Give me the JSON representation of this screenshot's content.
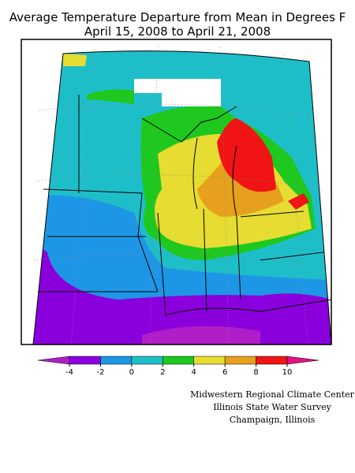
{
  "title": [
    "Average Temperature Departure from Mean in Degrees F",
    "April 15, 2008 to April 21, 2008"
  ],
  "legend": {
    "ticks": [
      -4,
      -2,
      0,
      2,
      4,
      6,
      8,
      10
    ],
    "colors": [
      "#b01ec8",
      "#8a00dc",
      "#1e96e6",
      "#1ebec8",
      "#1ec81e",
      "#e6dc32",
      "#e6a01e",
      "#f01414",
      "#e01282"
    ]
  },
  "credits": [
    "Midwestern Regional Climate Center",
    "Illinois State Water Survey",
    "Champaign, Illinois"
  ]
}
